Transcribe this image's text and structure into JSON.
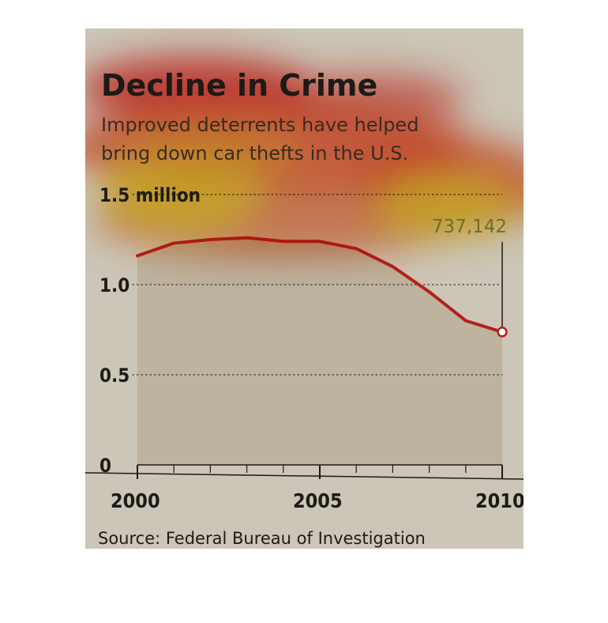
{
  "chart_data": {
    "type": "line",
    "title": "Decline in Crime",
    "subtitle_lines": [
      "Improved deterrents have helped",
      "bring down car thefts in the U.S."
    ],
    "x": [
      2000,
      2001,
      2002,
      2003,
      2004,
      2005,
      2006,
      2007,
      2008,
      2009,
      2010
    ],
    "series": [
      {
        "values": [
          1.16,
          1.23,
          1.25,
          1.26,
          1.24,
          1.24,
          1.2,
          1.1,
          0.96,
          0.8,
          0.737142
        ]
      }
    ],
    "xlim": [
      2000,
      2010
    ],
    "ylim": [
      0,
      1.5
    ],
    "x_ticks": [
      {
        "value": 2000,
        "label": "2000"
      },
      {
        "value": 2005,
        "label": "2005"
      },
      {
        "value": 2010,
        "label": "2010"
      }
    ],
    "y_ticks": [
      {
        "value": 0,
        "label": "0"
      },
      {
        "value": 0.5,
        "label": "0.5"
      },
      {
        "value": 1.0,
        "label": "1.0"
      },
      {
        "value": 1.5,
        "label": "1.5 million"
      }
    ],
    "annotation": {
      "x": 2010,
      "y": 0.737142,
      "label": "737,142"
    },
    "source": "Source: Federal Bureau of Investigation",
    "colors": {
      "background": "#cbc6b8",
      "area": "#bdb39f",
      "line": "#b3211b",
      "text": "#1e1a17"
    },
    "grid": "dotted horizontal"
  }
}
